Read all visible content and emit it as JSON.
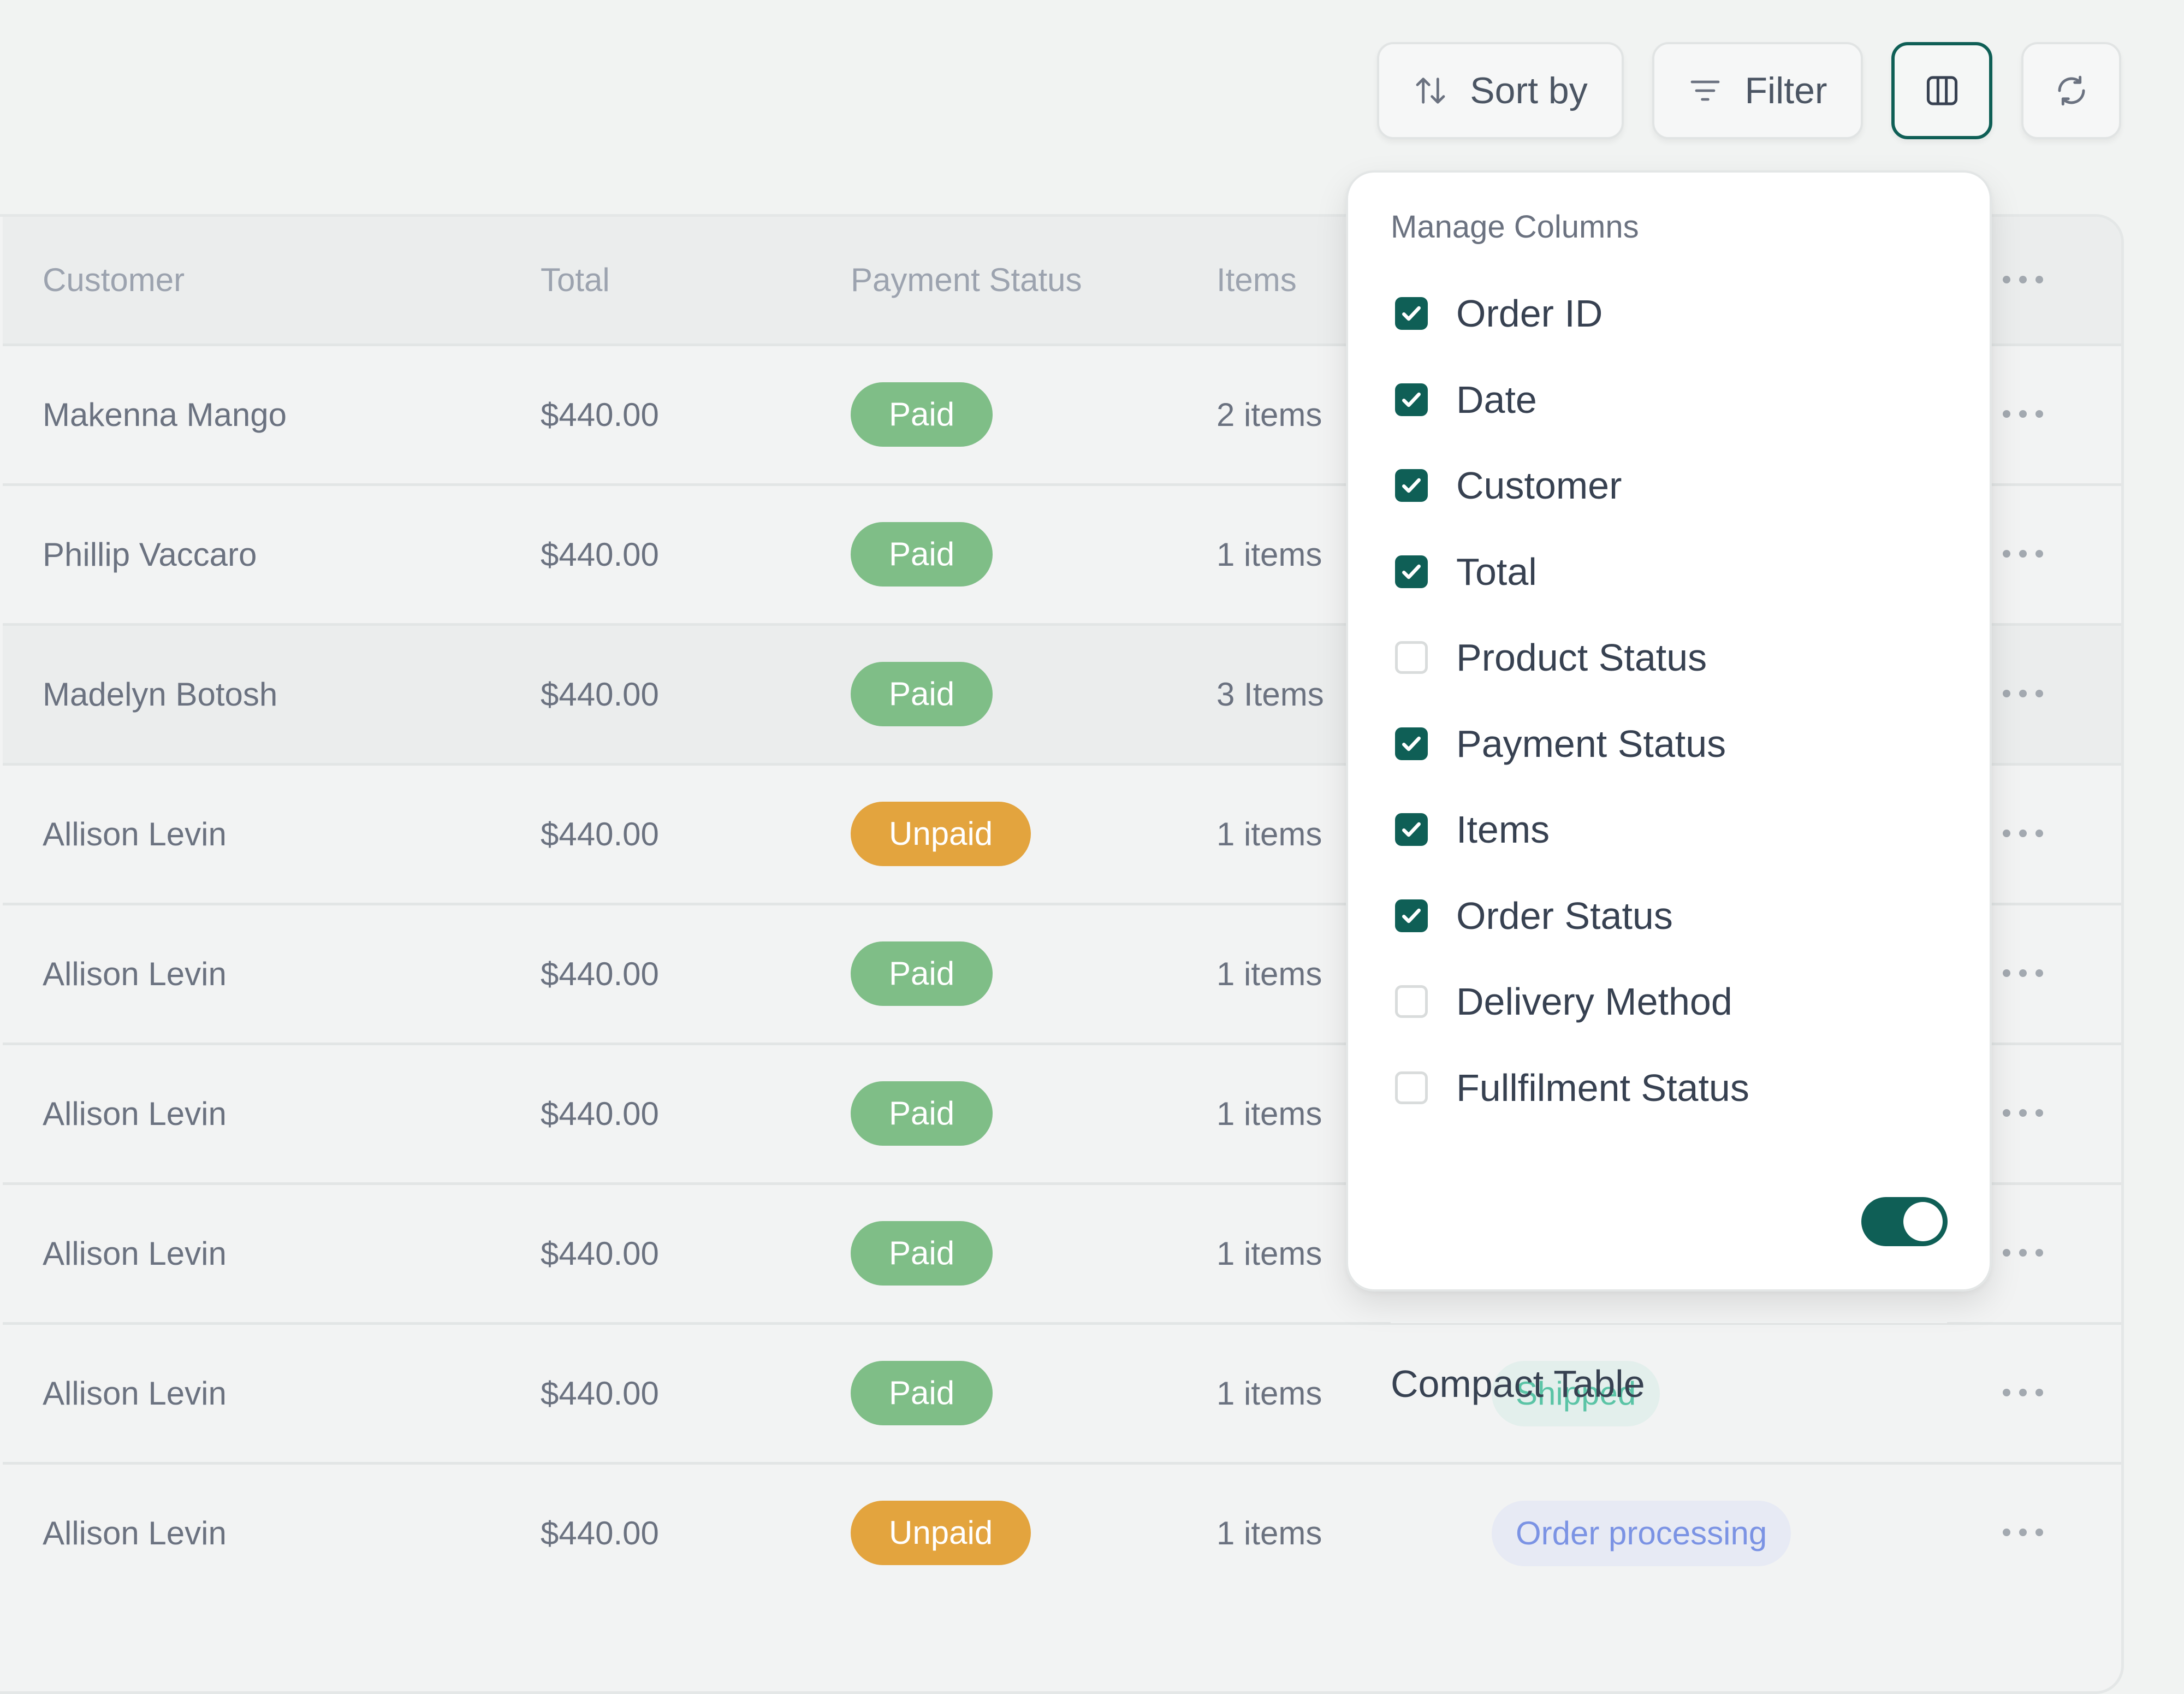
{
  "toolbar": {
    "sort_label": "Sort by",
    "filter_label": "Filter"
  },
  "table": {
    "headers": {
      "customer": "Customer",
      "total": "Total",
      "payment_status": "Payment Status",
      "items": "Items"
    },
    "rows": [
      {
        "customer": "Makenna Mango",
        "total": "$440.00",
        "payment": "Paid",
        "items": "2 items",
        "order_status": "",
        "highlight": false
      },
      {
        "customer": "Phillip Vaccaro",
        "total": "$440.00",
        "payment": "Paid",
        "items": "1 items",
        "order_status": "",
        "highlight": false
      },
      {
        "customer": "Madelyn Botosh",
        "total": "$440.00",
        "payment": "Paid",
        "items": "3 Items",
        "order_status": "",
        "highlight": true
      },
      {
        "customer": "Allison Levin",
        "total": "$440.00",
        "payment": "Unpaid",
        "items": "1 items",
        "order_status": "",
        "highlight": false
      },
      {
        "customer": "Allison Levin",
        "total": "$440.00",
        "payment": "Paid",
        "items": "1 items",
        "order_status": "",
        "highlight": false
      },
      {
        "customer": "Allison Levin",
        "total": "$440.00",
        "payment": "Paid",
        "items": "1 items",
        "order_status": "",
        "highlight": false
      },
      {
        "customer": "Allison Levin",
        "total": "$440.00",
        "payment": "Paid",
        "items": "1 items",
        "order_status": "",
        "highlight": false
      },
      {
        "customer": "Allison Levin",
        "total": "$440.00",
        "payment": "Paid",
        "items": "1 items",
        "order_status": "Shipped",
        "highlight": false
      },
      {
        "customer": "Allison Levin",
        "total": "$440.00",
        "payment": "Unpaid",
        "items": "1 items",
        "order_status": "Order processing",
        "highlight": false
      }
    ]
  },
  "manage_columns": {
    "title": "Manage Columns",
    "options": [
      {
        "label": "Order ID",
        "checked": true
      },
      {
        "label": "Date",
        "checked": true
      },
      {
        "label": "Customer",
        "checked": true
      },
      {
        "label": "Total",
        "checked": true
      },
      {
        "label": "Product Status",
        "checked": false
      },
      {
        "label": "Payment Status",
        "checked": true
      },
      {
        "label": "Items",
        "checked": true
      },
      {
        "label": "Order Status",
        "checked": true
      },
      {
        "label": "Delivery Method",
        "checked": false
      },
      {
        "label": "Fullfilment Status",
        "checked": false
      }
    ],
    "compact_table_label": "Compact Table",
    "compact_table_on": true
  },
  "icons": {
    "sort": "sort-arrows-icon",
    "filter": "filter-lines-icon",
    "columns": "columns-icon",
    "refresh": "refresh-icon",
    "more": "more-horizontal-icon",
    "check": "check-icon"
  },
  "colors": {
    "accent": "#0f5f56",
    "paid": "#7fbe87",
    "unpaid": "#e3a43e",
    "shipped_bg": "#e3efec",
    "shipped_text": "#5bc4a6",
    "processing_bg": "#e7eaf4",
    "processing_text": "#7b93e4"
  }
}
